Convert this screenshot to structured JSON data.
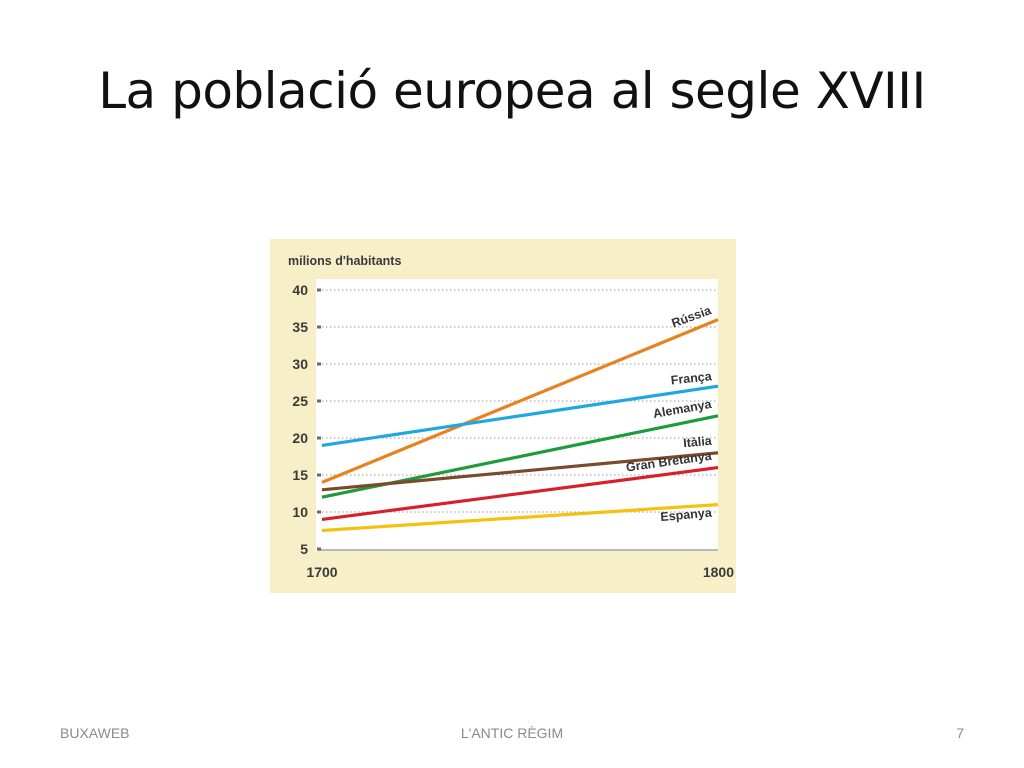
{
  "slide": {
    "title": "La població europea al segle XVIII",
    "footer_left": "BUXAWEB",
    "footer_center": "L'ANTIC RÈGIM",
    "page_number": "7"
  },
  "colors": {
    "panel_background": "#f7efc7",
    "plot_background": "#ffffff",
    "Rússia": "#e8821e",
    "França": "#1fa8e0",
    "Alemanya": "#1f9a3c",
    "Itàlia": "#7a4a2a",
    "Gran Bretanya": "#d81f2a",
    "Espanya": "#f5c10e"
  },
  "chart_data": {
    "type": "line",
    "ylabel": "milions d'habitants",
    "xlabel": "",
    "x": [
      1700,
      1800
    ],
    "x_ticks": [
      "1700",
      "1800"
    ],
    "y_ticks": [
      5,
      10,
      15,
      20,
      25,
      30,
      35,
      40
    ],
    "ylim": [
      5,
      40
    ],
    "grid": "dotted horizontal",
    "legend": "series labels at right end of lines",
    "series": [
      {
        "name": "Rússia",
        "values": [
          14,
          36
        ]
      },
      {
        "name": "França",
        "values": [
          19,
          27
        ]
      },
      {
        "name": "Alemanya",
        "values": [
          12,
          23
        ]
      },
      {
        "name": "Itàlia",
        "values": [
          13,
          18
        ]
      },
      {
        "name": "Gran Bretanya",
        "values": [
          9,
          16
        ]
      },
      {
        "name": "Espanya",
        "values": [
          7.5,
          11
        ]
      }
    ]
  }
}
